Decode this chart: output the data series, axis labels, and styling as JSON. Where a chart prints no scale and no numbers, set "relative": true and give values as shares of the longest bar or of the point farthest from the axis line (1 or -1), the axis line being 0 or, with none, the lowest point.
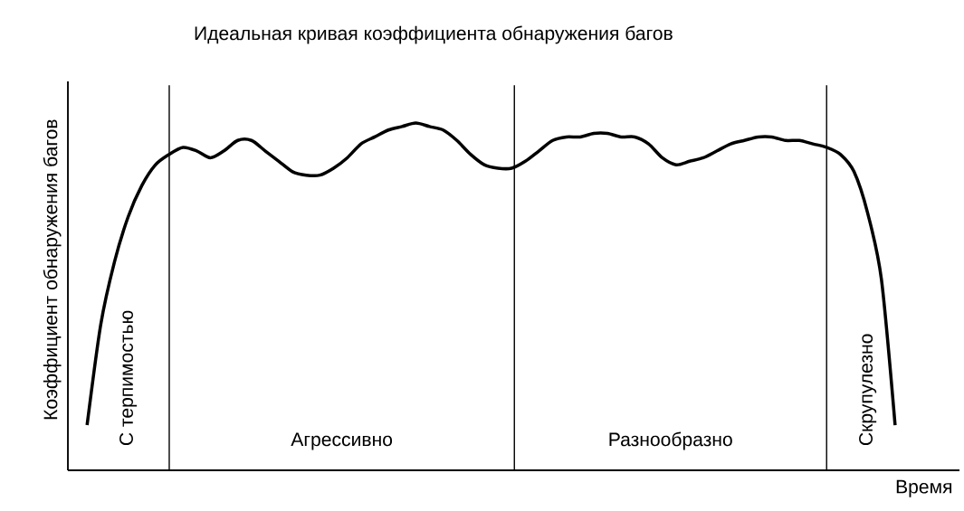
{
  "chart_data": {
    "type": "line",
    "title": "Идеальная кривая коэффициента обнаружения багов",
    "xlabel": "Время",
    "ylabel": "Коэффициент обнаружения багов",
    "relative": true,
    "categories": [
      null,
      null,
      null,
      null,
      null,
      null,
      null,
      null,
      null,
      null,
      null,
      null,
      null,
      null,
      null,
      null,
      null,
      null,
      null,
      null,
      null,
      null,
      null,
      null,
      null,
      null,
      null,
      null,
      null,
      null,
      null,
      null,
      null,
      null,
      null,
      null,
      null,
      null,
      null,
      null,
      null,
      null,
      null,
      null,
      null,
      null,
      null,
      null,
      null,
      null,
      null,
      null,
      null,
      null,
      null,
      null,
      null,
      null,
      null,
      null
    ],
    "series": [
      {
        "color": "#000000",
        "values": [
          0.13,
          0.42,
          0.6,
          0.73,
          0.82,
          0.88,
          0.91,
          0.93,
          0.92,
          0.9,
          0.92,
          0.95,
          0.95,
          0.92,
          0.89,
          0.86,
          0.85,
          0.85,
          0.87,
          0.9,
          0.94,
          0.96,
          0.98,
          0.99,
          1,
          0.99,
          0.98,
          0.95,
          0.91,
          0.88,
          0.87,
          0.87,
          0.89,
          0.92,
          0.95,
          0.96,
          0.96,
          0.97,
          0.97,
          0.96,
          0.96,
          0.94,
          0.9,
          0.88,
          0.89,
          0.9,
          0.92,
          0.94,
          0.95,
          0.96,
          0.96,
          0.95,
          0.95,
          0.94,
          0.93,
          0.91,
          0.86,
          0.74,
          0.55,
          0.13
        ]
      }
    ],
    "grid": "x",
    "annotations": [
      "С терпимостью",
      "Агрессивно",
      "Разнообразно",
      "Скрупулезно"
    ]
  }
}
